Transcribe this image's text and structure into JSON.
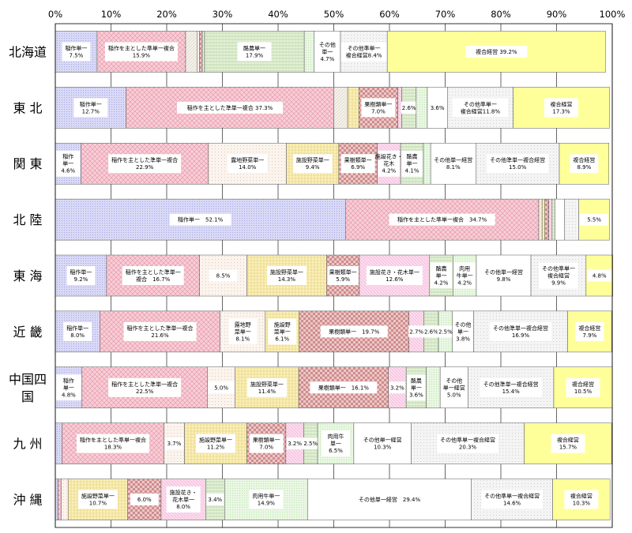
{
  "chart_data": {
    "type": "bar",
    "orientation": "horizontal",
    "stacked": "percent",
    "title": "",
    "xlim": [
      0,
      100
    ],
    "x_ticks": [
      "0%",
      "10%",
      "20%",
      "30%",
      "40%",
      "50%",
      "60%",
      "70%",
      "80%",
      "90%",
      "100%"
    ],
    "grid": true,
    "legend": "none",
    "pattern_colors": {
      "rice": "#d6d6f5",
      "rice_mix": "#f5c8d2",
      "field": "#f3efea",
      "open_veg": "#fbf3ec",
      "green_veg": "#fffbe0",
      "fac_veg": "#fbeeb2",
      "fruit": "#e8c2c2",
      "fac_flower": "#fbd8ec",
      "dairy": "#deedd2",
      "beef": "#e6f6e0",
      "other_single": "#ffffff",
      "other_mix": "#f2f2f2",
      "complex": "#ffff99"
    },
    "categories": [
      {
        "name": "北海道",
        "segments": [
          {
            "key": "rice",
            "label": [
              "稲作単一",
              "7.5%"
            ],
            "value": 7.5
          },
          {
            "key": "rice_mix",
            "label": [
              "稲作を主とした準単一複合",
              "15.9%"
            ],
            "value": 15.9
          },
          {
            "key": "field",
            "label": [],
            "value": 2.1
          },
          {
            "key": "open_veg",
            "label": [],
            "value": 0.4
          },
          {
            "key": "fruit",
            "label": [],
            "value": 0.5
          },
          {
            "key": "beef",
            "label": [],
            "value": 0.4
          },
          {
            "key": "dairy",
            "label": [
              "酪農単一",
              "17.9%"
            ],
            "value": 17.9
          },
          {
            "key": "beef",
            "label": [],
            "value": 1.8
          },
          {
            "key": "other_single",
            "label": [
              "その他",
              "単一",
              "4.7%"
            ],
            "value": 4.7
          },
          {
            "key": "other_mix",
            "label": [
              "その他準単一",
              "複合経営8.4%"
            ],
            "value": 8.4
          },
          {
            "key": "complex",
            "label": [
              "複合経営 39.2%"
            ],
            "value": 39.2
          }
        ]
      },
      {
        "name": "東 北",
        "segments": [
          {
            "key": "rice",
            "label": [
              "稲作単一",
              "12.7%"
            ],
            "value": 12.7
          },
          {
            "key": "rice_mix",
            "label": [
              "稲作を主とした準単一複合 37.3%"
            ],
            "value": 37.3
          },
          {
            "key": "field",
            "label": [],
            "value": 2.5
          },
          {
            "key": "fac_veg",
            "label": [],
            "value": 2.0
          },
          {
            "key": "fruit",
            "label": [
              "果樹類単一",
              "7.0%"
            ],
            "value": 7.0
          },
          {
            "key": "fac_flower",
            "label": [],
            "value": 0.7
          },
          {
            "key": "dairy",
            "label": [
              "2.6%"
            ],
            "value": 2.6
          },
          {
            "key": "beef",
            "label": [],
            "value": 2.0
          },
          {
            "key": "other_single",
            "label": [
              "3.6%"
            ],
            "value": 3.6
          },
          {
            "key": "other_mix",
            "label": [
              "その他準単一",
              "複合経営11.8%"
            ],
            "value": 11.8
          },
          {
            "key": "complex",
            "label": [
              "複合経営",
              "17.3%"
            ],
            "value": 17.3
          }
        ]
      },
      {
        "name": "関 東",
        "segments": [
          {
            "key": "rice",
            "label": [
              "稲作",
              "単一",
              "4.6%"
            ],
            "value": 4.6
          },
          {
            "key": "rice_mix",
            "label": [
              "稲作を主とした準単一複合",
              "22.9%"
            ],
            "value": 22.9
          },
          {
            "key": "open_veg",
            "label": [
              "露地野菜単一",
              "14.0%"
            ],
            "value": 14.0
          },
          {
            "key": "fac_veg",
            "label": [
              "施設野菜単一",
              "9.4%"
            ],
            "value": 9.4
          },
          {
            "key": "fruit",
            "label": [
              "果樹類単一",
              "6.9%"
            ],
            "value": 6.9
          },
          {
            "key": "fac_flower",
            "label": [
              "施設花き・",
              "花木",
              "4.2%"
            ],
            "value": 4.2
          },
          {
            "key": "dairy",
            "label": [
              "酪農",
              "単一",
              "4.1%"
            ],
            "value": 4.1
          },
          {
            "key": "beef",
            "label": [],
            "value": 1.3
          },
          {
            "key": "other_single",
            "label": [
              "その他単一経営",
              "8.1%"
            ],
            "value": 8.1
          },
          {
            "key": "other_mix",
            "label": [
              "その他準単一複合経営",
              "15.0%"
            ],
            "value": 15.0
          },
          {
            "key": "complex",
            "label": [
              "複合経営",
              "8.9%"
            ],
            "value": 8.9
          }
        ]
      },
      {
        "name": "北 陸",
        "segments": [
          {
            "key": "rice",
            "label": [
              "稲作単一　52.1%"
            ],
            "value": 52.1
          },
          {
            "key": "rice_mix",
            "label": [
              "稲作を主とした準単一複合　34.7%"
            ],
            "value": 34.7
          },
          {
            "key": "field",
            "label": [],
            "value": 0.6
          },
          {
            "key": "fac_veg",
            "label": [],
            "value": 0.5
          },
          {
            "key": "fruit",
            "label": [],
            "value": 0.7
          },
          {
            "key": "fac_flower",
            "label": [],
            "value": 0.6
          },
          {
            "key": "dairy",
            "label": [],
            "value": 0.5
          },
          {
            "key": "other_single",
            "label": [],
            "value": 1.7
          },
          {
            "key": "other_mix",
            "label": [],
            "value": 2.6
          },
          {
            "key": "complex",
            "label": [
              "5.5%"
            ],
            "value": 5.5
          }
        ]
      },
      {
        "name": "東 海",
        "segments": [
          {
            "key": "rice",
            "label": [
              "稲作単一",
              "9.2%"
            ],
            "value": 9.2
          },
          {
            "key": "rice_mix",
            "label": [
              "稲作を主とした準単一",
              "複合　16.7%"
            ],
            "value": 16.7
          },
          {
            "key": "open_veg",
            "label": [
              "8.5%"
            ],
            "value": 8.5
          },
          {
            "key": "fac_veg",
            "label": [
              "施設野菜単一",
              "14.3%"
            ],
            "value": 14.3
          },
          {
            "key": "fruit",
            "label": [
              "果樹類単一",
              "5.9%"
            ],
            "value": 5.9
          },
          {
            "key": "fac_flower",
            "label": [
              "施設花き・花木単一",
              "12.6%"
            ],
            "value": 12.6
          },
          {
            "key": "dairy",
            "label": [
              "酪農",
              "単一",
              "4.2%"
            ],
            "value": 4.2
          },
          {
            "key": "beef",
            "label": [
              "肉用",
              "牛単一",
              "4.2%"
            ],
            "value": 4.2
          },
          {
            "key": "other_single",
            "label": [
              "その他単一経営",
              "9.8%"
            ],
            "value": 9.8
          },
          {
            "key": "other_mix",
            "label": [
              "その他準単一",
              "複合経営",
              "9.9%"
            ],
            "value": 9.9
          },
          {
            "key": "complex",
            "label": [
              "4.8%"
            ],
            "value": 4.8
          }
        ]
      },
      {
        "name": "近 畿",
        "segments": [
          {
            "key": "rice",
            "label": [
              "稲作単一",
              "8.0%"
            ],
            "value": 8.0
          },
          {
            "key": "rice_mix",
            "label": [
              "稲作を主とした準単一複合",
              "21.6%"
            ],
            "value": 21.6
          },
          {
            "key": "open_veg",
            "label": [
              "露地野",
              "菜単一",
              "8.1%"
            ],
            "value": 8.1
          },
          {
            "key": "fac_veg",
            "label": [
              "施設野",
              "菜単一",
              "6.1%"
            ],
            "value": 6.1
          },
          {
            "key": "fruit",
            "label": [
              "果樹類単一　19.7%"
            ],
            "value": 19.7
          },
          {
            "key": "fac_flower",
            "label": [
              "2.7%"
            ],
            "value": 2.7
          },
          {
            "key": "dairy",
            "label": [
              "2.6%"
            ],
            "value": 2.6
          },
          {
            "key": "beef",
            "label": [
              "2.5%"
            ],
            "value": 2.5
          },
          {
            "key": "other_single",
            "label": [
              "その他",
              "単一",
              "3.8%"
            ],
            "value": 3.8
          },
          {
            "key": "other_mix",
            "label": [
              "その他準単一複合経営",
              "16.9%"
            ],
            "value": 16.9
          },
          {
            "key": "complex",
            "label": [
              "複合経営",
              "7.9%"
            ],
            "value": 7.9
          }
        ]
      },
      {
        "name": [
          "中国四",
          "国"
        ],
        "segments": [
          {
            "key": "rice",
            "label": [
              "稲作",
              "単一",
              "4.8%"
            ],
            "value": 4.8
          },
          {
            "key": "rice_mix",
            "label": [
              "稲作を主とした準単一複合",
              "22.5%"
            ],
            "value": 22.5
          },
          {
            "key": "open_veg",
            "label": [
              "5.0%"
            ],
            "value": 5.0
          },
          {
            "key": "fac_veg",
            "label": [
              "施設野菜単一",
              "11.4%"
            ],
            "value": 11.4
          },
          {
            "key": "fruit",
            "label": [
              "果樹類単一　16.1%"
            ],
            "value": 16.1
          },
          {
            "key": "fac_flower",
            "label": [
              "3.2%"
            ],
            "value": 3.2
          },
          {
            "key": "dairy",
            "label": [
              "酪農",
              "単一",
              "3.6%"
            ],
            "value": 3.6
          },
          {
            "key": "beef",
            "label": [],
            "value": 2.5
          },
          {
            "key": "other_single",
            "label": [
              "その他",
              "単一経営",
              "5.0%"
            ],
            "value": 5.0
          },
          {
            "key": "other_mix",
            "label": [
              "その他準単一複合経営",
              "15.4%"
            ],
            "value": 15.4
          },
          {
            "key": "complex",
            "label": [
              "複合経営",
              "10.5%"
            ],
            "value": 10.5
          }
        ]
      },
      {
        "name": "九 州",
        "segments": [
          {
            "key": "rice",
            "label": [],
            "value": 1.2
          },
          {
            "key": "rice_mix",
            "label": [
              "稲作を主とした準単一複合",
              "18.3%"
            ],
            "value": 18.3
          },
          {
            "key": "open_veg",
            "label": [
              "3.7%"
            ],
            "value": 3.7
          },
          {
            "key": "fac_veg",
            "label": [
              "施設野菜単一",
              "11.2%"
            ],
            "value": 11.2
          },
          {
            "key": "fruit",
            "label": [
              "果樹類単一",
              "7.0%"
            ],
            "value": 7.0
          },
          {
            "key": "fac_flower",
            "label": [
              "3.2%"
            ],
            "value": 3.2
          },
          {
            "key": "dairy",
            "label": [
              "2.5%"
            ],
            "value": 2.5
          },
          {
            "key": "beef",
            "label": [
              "肉用牛",
              "単一",
              "6.5%"
            ],
            "value": 6.5
          },
          {
            "key": "other_single",
            "label": [
              "その他単一経営",
              "10.3%"
            ],
            "value": 10.3
          },
          {
            "key": "other_mix",
            "label": [
              "その他準単一複合経営",
              "20.3%"
            ],
            "value": 20.3
          },
          {
            "key": "complex",
            "label": [
              "複合経営",
              "15.7%"
            ],
            "value": 15.7
          }
        ]
      },
      {
        "name": "沖 縄",
        "segments": [
          {
            "key": "rice",
            "label": [],
            "value": 0.5
          },
          {
            "key": "rice_mix",
            "label": [],
            "value": 0.6
          },
          {
            "key": "open_veg",
            "label": [],
            "value": 1.2
          },
          {
            "key": "fac_veg",
            "label": [
              "施設野菜単一",
              "10.7%"
            ],
            "value": 10.7
          },
          {
            "key": "fruit",
            "label": [
              "6.0%"
            ],
            "value": 6.0
          },
          {
            "key": "fac_flower",
            "label": [
              "施設花き・",
              "花木単一",
              "8.0%"
            ],
            "value": 8.0
          },
          {
            "key": "dairy",
            "label": [
              "3.4%"
            ],
            "value": 3.4
          },
          {
            "key": "beef",
            "label": [
              "肉用牛単一",
              "14.9%"
            ],
            "value": 14.9
          },
          {
            "key": "other_single",
            "label": [
              "その他単一経営　29.4%"
            ],
            "value": 29.4
          },
          {
            "key": "other_mix",
            "label": [
              "その他準単一複合経営",
              "14.6%"
            ],
            "value": 14.6
          },
          {
            "key": "complex",
            "label": [
              "複合経営",
              "10.3%"
            ],
            "value": 10.3
          }
        ]
      }
    ]
  }
}
